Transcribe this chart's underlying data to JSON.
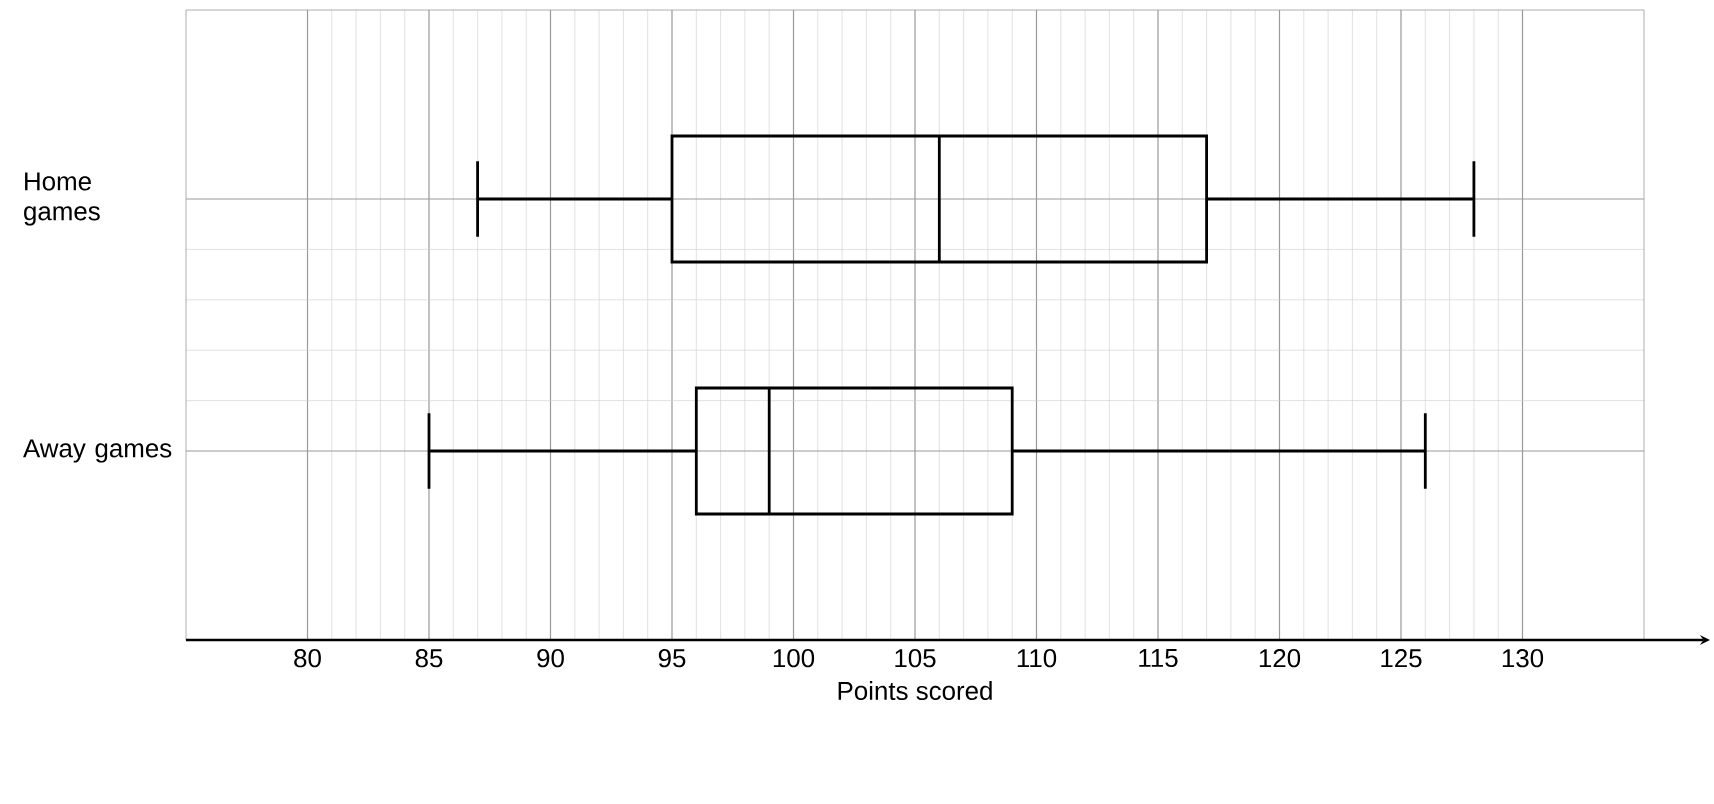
{
  "chart_data": {
    "type": "box",
    "orientation": "horizontal",
    "categories": [
      "Home games",
      "Away games"
    ],
    "boxes": [
      {
        "low": 87,
        "q1": 95,
        "median": 106,
        "q3": 117,
        "high": 128
      },
      {
        "low": 85,
        "q1": 96,
        "median": 99,
        "q3": 109,
        "high": 126
      }
    ],
    "xlabel": "Points scored",
    "xlim": [
      75,
      135
    ],
    "xticks": [
      80,
      85,
      90,
      95,
      100,
      105,
      110,
      115,
      120,
      125,
      130
    ],
    "grid": true
  }
}
